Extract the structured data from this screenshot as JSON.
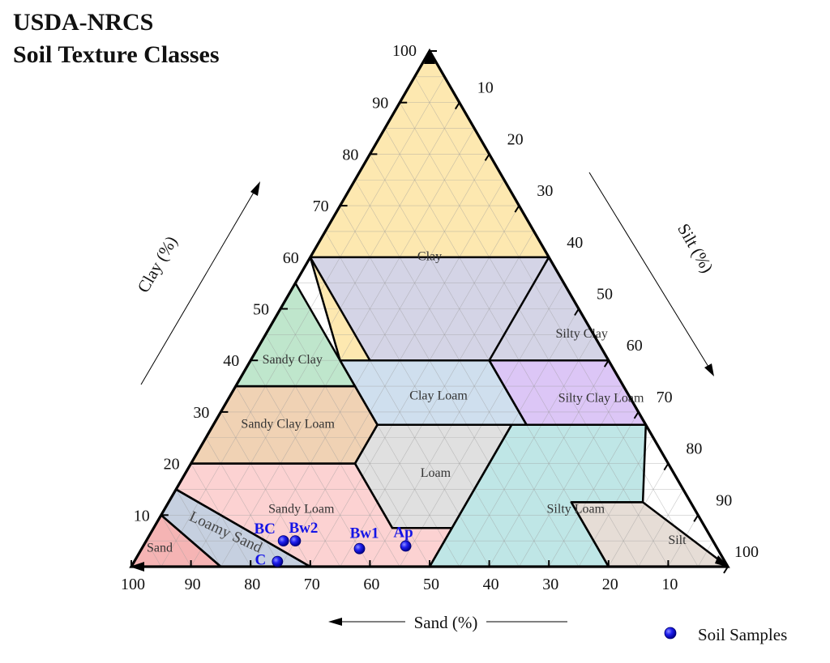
{
  "title_lines": [
    "USDA-NRCS",
    "Soil Texture Classes"
  ],
  "chart_data": {
    "type": "ternary-scatter",
    "axes": {
      "sand": {
        "label": "Sand (%)",
        "ticks": [
          100,
          90,
          80,
          70,
          60,
          50,
          40,
          30,
          20,
          10
        ]
      },
      "clay": {
        "label": "Clay (%)",
        "ticks": [
          10,
          20,
          30,
          40,
          50,
          60,
          70,
          80,
          90,
          100
        ]
      },
      "silt": {
        "label": "Silt (%)",
        "ticks": [
          10,
          20,
          30,
          40,
          50,
          60,
          70,
          80,
          90,
          100
        ]
      }
    },
    "grid": true,
    "regions": [
      {
        "name": "Clay",
        "color": "#fde8b0",
        "vertices": [
          [
            0,
            100
          ],
          [
            0,
            60
          ],
          [
            20,
            40
          ],
          [
            45,
            40
          ],
          [
            40,
            60
          ]
        ]
      },
      {
        "name": "Sandy Clay",
        "color": "#bfe6cc",
        "vertices": [
          [
            45,
            55
          ],
          [
            45,
            35
          ],
          [
            65,
            35
          ]
        ]
      },
      {
        "name": "Silty Clay",
        "color": "#d4d4e6",
        "vertices": [
          [
            0,
            40
          ],
          [
            0,
            60
          ],
          [
            40,
            60
          ],
          [
            40,
            40
          ]
        ]
      },
      {
        "name": "Clay Loam",
        "color": "#cfdfee",
        "vertices": [
          [
            20,
            40
          ],
          [
            20,
            27.5
          ],
          [
            45,
            27.5
          ],
          [
            45,
            40
          ]
        ]
      },
      {
        "name": "Silty Clay Loam",
        "color": "#dcc6f6",
        "vertices": [
          [
            0,
            40
          ],
          [
            0,
            27.5
          ],
          [
            20,
            27.5
          ],
          [
            20,
            40
          ]
        ]
      },
      {
        "name": "Sandy Clay Loam",
        "color": "#f0d2b4",
        "vertices": [
          [
            45,
            35
          ],
          [
            45,
            27.5
          ],
          [
            52.5,
            20
          ],
          [
            80,
            20
          ],
          [
            65,
            35
          ]
        ]
      },
      {
        "name": "Loam",
        "color": "#e0e0e0",
        "vertices": [
          [
            45,
            27.5
          ],
          [
            52.5,
            20
          ],
          [
            52.5,
            7.5
          ],
          [
            42.5,
            7.5
          ],
          [
            22.5,
            27.5
          ]
        ]
      },
      {
        "name": "Silty Loam",
        "color": "#bfe6e6",
        "vertices": [
          [
            22.5,
            27.5
          ],
          [
            50,
            0
          ],
          [
            20,
            0
          ],
          [
            20,
            12.5
          ],
          [
            8,
            12.5
          ],
          [
            0,
            27.5
          ]
        ]
      },
      {
        "name": "Silt",
        "color": "#e6ddd6",
        "vertices": [
          [
            20,
            0
          ],
          [
            20,
            12.5
          ],
          [
            8,
            12.5
          ],
          [
            0,
            0
          ]
        ]
      },
      {
        "name": "Sandy Loam",
        "color": "#fcd2d2",
        "vertices": [
          [
            80,
            20
          ],
          [
            52.5,
            20
          ],
          [
            52.5,
            7.5
          ],
          [
            42.5,
            7.5
          ],
          [
            50,
            0
          ],
          [
            70,
            0
          ],
          [
            85,
            15
          ]
        ]
      },
      {
        "name": "Loamy Sand",
        "color": "#c6d0e0",
        "vertices": [
          [
            85,
            15
          ],
          [
            70,
            0
          ],
          [
            85,
            0
          ],
          [
            90,
            10
          ]
        ]
      },
      {
        "name": "Sand",
        "color": "#f5b4b4",
        "vertices": [
          [
            100,
            0
          ],
          [
            85,
            0
          ],
          [
            90,
            10
          ]
        ]
      }
    ],
    "region_labels": [
      {
        "name": "Clay",
        "sand": 20,
        "clay": 60,
        "rotate": 0
      },
      {
        "name": "Sandy Clay",
        "sand": 53,
        "clay": 40,
        "rotate": 0
      },
      {
        "name": "Silty Clay",
        "sand": 2,
        "clay": 45,
        "rotate": 0
      },
      {
        "name": "Clay Loam",
        "sand": 32,
        "clay": 33,
        "rotate": 0
      },
      {
        "name": "Silty Clay Loam",
        "sand": 5,
        "clay": 32.5,
        "rotate": 0
      },
      {
        "name": "Sandy Clay Loam",
        "sand": 60,
        "clay": 27.5,
        "rotate": 0
      },
      {
        "name": "Loam",
        "sand": 40,
        "clay": 18,
        "rotate": 0
      },
      {
        "name": "Silty Loam",
        "sand": 20,
        "clay": 11,
        "rotate": 0
      },
      {
        "name": "Silt",
        "sand": 6,
        "clay": 5,
        "rotate": 0
      },
      {
        "name": "Sandy Loam",
        "sand": 66,
        "clay": 11,
        "rotate": 0
      },
      {
        "name": "Loamy Sand",
        "sand": 81,
        "clay": 6.5,
        "rotate": 25
      },
      {
        "name": "Sand",
        "sand": 93.5,
        "clay": 3.5,
        "rotate": 0
      }
    ],
    "series": [
      {
        "name": "Soil Samples",
        "color": "#1414e6",
        "points": [
          {
            "label": "Ap",
            "sand": 52,
            "clay": 4
          },
          {
            "label": "Bw1",
            "sand": 60,
            "clay": 3.5
          },
          {
            "label": "Bw2",
            "sand": 70,
            "clay": 5
          },
          {
            "label": "BC",
            "sand": 72,
            "clay": 5
          },
          {
            "label": "C",
            "sand": 75,
            "clay": 1
          }
        ]
      }
    ],
    "legend": {
      "position": "bottom-right",
      "entries": [
        "Soil Samples"
      ]
    }
  }
}
